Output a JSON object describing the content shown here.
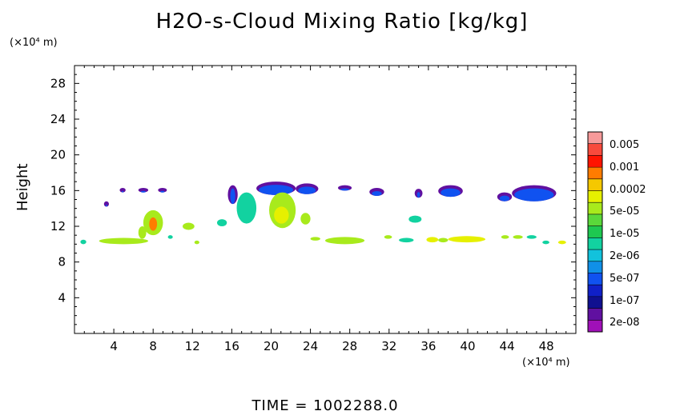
{
  "chart_data": {
    "type": "heatmap",
    "title": "H2O-s-Cloud Mixing Ratio [kg/kg]",
    "xlabel": "",
    "ylabel": "Height",
    "x_unit_label": "(×10⁴ m)",
    "y_unit_label": "(×10⁴ m)",
    "footer": "TIME = 1002288.0",
    "xlim": [
      0,
      51
    ],
    "ylim": [
      0,
      30
    ],
    "x_ticks": [
      4,
      8,
      12,
      16,
      20,
      24,
      28,
      32,
      36,
      40,
      44,
      48
    ],
    "y_ticks": [
      4,
      8,
      12,
      16,
      20,
      24,
      28
    ],
    "x_tick_labels": [
      "4",
      "8",
      "12",
      "16",
      "20",
      "24",
      "28",
      "32",
      "36",
      "40",
      "44",
      "48"
    ],
    "y_tick_labels": [
      "4",
      "8",
      "12",
      "16",
      "20",
      "24",
      "28"
    ],
    "colorbar": {
      "labels": [
        "0.005",
        "0.001",
        "0.0002",
        "5e-05",
        "1e-05",
        "2e-06",
        "5e-07",
        "1e-07",
        "2e-08"
      ],
      "colors": [
        "#f79a9a",
        "#f84a3c",
        "#ff1400",
        "#ff7c00",
        "#f5c800",
        "#e6f000",
        "#a8ea1c",
        "#5ad83a",
        "#1ec850",
        "#12d2a0",
        "#12c2dc",
        "#1090e8",
        "#1052f0",
        "#1020c8",
        "#101090",
        "#6010a0",
        "#a010b8"
      ]
    },
    "regions": [
      {
        "x": [
          0.6,
          1.2
        ],
        "y": [
          10.0,
          10.5
        ],
        "level": 1
      },
      {
        "x": [
          2.5,
          7.5
        ],
        "y": [
          10.0,
          10.7
        ],
        "level": 2
      },
      {
        "x": [
          6.5,
          7.3
        ],
        "y": [
          10.6,
          12.0
        ],
        "level": 2
      },
      {
        "x": [
          7.0,
          9.0
        ],
        "y": [
          11.0,
          13.8
        ],
        "level": 2
      },
      {
        "x": [
          7.6,
          8.4
        ],
        "y": [
          11.5,
          13.0
        ],
        "level": 6
      },
      {
        "x": [
          7.8,
          8.2
        ],
        "y": [
          11.8,
          12.6
        ],
        "level": 7
      },
      {
        "x": [
          3.0,
          3.5
        ],
        "y": [
          14.2,
          14.8
        ],
        "level": 0
      },
      {
        "x": [
          4.6,
          5.2
        ],
        "y": [
          15.8,
          16.3
        ],
        "level": 0
      },
      {
        "x": [
          6.5,
          7.5
        ],
        "y": [
          15.8,
          16.3
        ],
        "level": 0
      },
      {
        "x": [
          8.5,
          9.4
        ],
        "y": [
          15.8,
          16.3
        ],
        "level": 0
      },
      {
        "x": [
          11.0,
          12.2
        ],
        "y": [
          11.6,
          12.4
        ],
        "level": 2
      },
      {
        "x": [
          9.5,
          10.0
        ],
        "y": [
          10.6,
          11.0
        ],
        "level": 1
      },
      {
        "x": [
          12.2,
          12.7
        ],
        "y": [
          10.0,
          10.4
        ],
        "level": 2
      },
      {
        "x": [
          14.5,
          15.5
        ],
        "y": [
          12.0,
          12.8
        ],
        "level": 1
      },
      {
        "x": [
          15.6,
          16.6
        ],
        "y": [
          14.5,
          16.6
        ],
        "level": 0
      },
      {
        "x": [
          16.5,
          18.5
        ],
        "y": [
          12.3,
          15.8
        ],
        "level": 1
      },
      {
        "x": [
          18.5,
          22.5
        ],
        "y": [
          15.5,
          17.0
        ],
        "level": 0
      },
      {
        "x": [
          19.8,
          22.5
        ],
        "y": [
          11.8,
          15.8
        ],
        "level": 2
      },
      {
        "x": [
          20.3,
          21.8
        ],
        "y": [
          12.3,
          14.2
        ],
        "level": 3
      },
      {
        "x": [
          23.0,
          24.0
        ],
        "y": [
          12.2,
          13.5
        ],
        "level": 2
      },
      {
        "x": [
          22.5,
          24.8
        ],
        "y": [
          15.6,
          16.8
        ],
        "level": 0
      },
      {
        "x": [
          24.0,
          25.0
        ],
        "y": [
          10.4,
          10.8
        ],
        "level": 2
      },
      {
        "x": [
          25.5,
          29.5
        ],
        "y": [
          10.0,
          10.8
        ],
        "level": 2
      },
      {
        "x": [
          26.8,
          28.2
        ],
        "y": [
          16.0,
          16.6
        ],
        "level": 0
      },
      {
        "x": [
          30.0,
          31.5
        ],
        "y": [
          15.4,
          16.3
        ],
        "level": 0
      },
      {
        "x": [
          31.5,
          32.3
        ],
        "y": [
          10.6,
          11.0
        ],
        "level": 2
      },
      {
        "x": [
          33.0,
          34.5
        ],
        "y": [
          10.2,
          10.7
        ],
        "level": 1
      },
      {
        "x": [
          34.0,
          35.3
        ],
        "y": [
          12.4,
          13.2
        ],
        "level": 1
      },
      {
        "x": [
          34.6,
          35.4
        ],
        "y": [
          15.2,
          16.2
        ],
        "level": 0
      },
      {
        "x": [
          35.8,
          37.0
        ],
        "y": [
          10.2,
          10.8
        ],
        "level": 3
      },
      {
        "x": [
          37.0,
          38.0
        ],
        "y": [
          10.2,
          10.7
        ],
        "level": 2
      },
      {
        "x": [
          38.0,
          41.8
        ],
        "y": [
          10.2,
          10.9
        ],
        "level": 3
      },
      {
        "x": [
          37.0,
          39.5
        ],
        "y": [
          15.3,
          16.6
        ],
        "level": 0
      },
      {
        "x": [
          43.0,
          44.5
        ],
        "y": [
          14.8,
          15.8
        ],
        "level": 0
      },
      {
        "x": [
          44.5,
          49.0
        ],
        "y": [
          14.8,
          16.6
        ],
        "level": 0
      },
      {
        "x": [
          43.4,
          44.2
        ],
        "y": [
          10.6,
          11.0
        ],
        "level": 2
      },
      {
        "x": [
          44.6,
          45.6
        ],
        "y": [
          10.6,
          11.0
        ],
        "level": 2
      },
      {
        "x": [
          46.0,
          47.0
        ],
        "y": [
          10.6,
          11.0
        ],
        "level": 1
      },
      {
        "x": [
          47.6,
          48.3
        ],
        "y": [
          10.0,
          10.4
        ],
        "level": 1
      },
      {
        "x": [
          49.2,
          50.0
        ],
        "y": [
          10.0,
          10.4
        ],
        "level": 3
      }
    ]
  }
}
